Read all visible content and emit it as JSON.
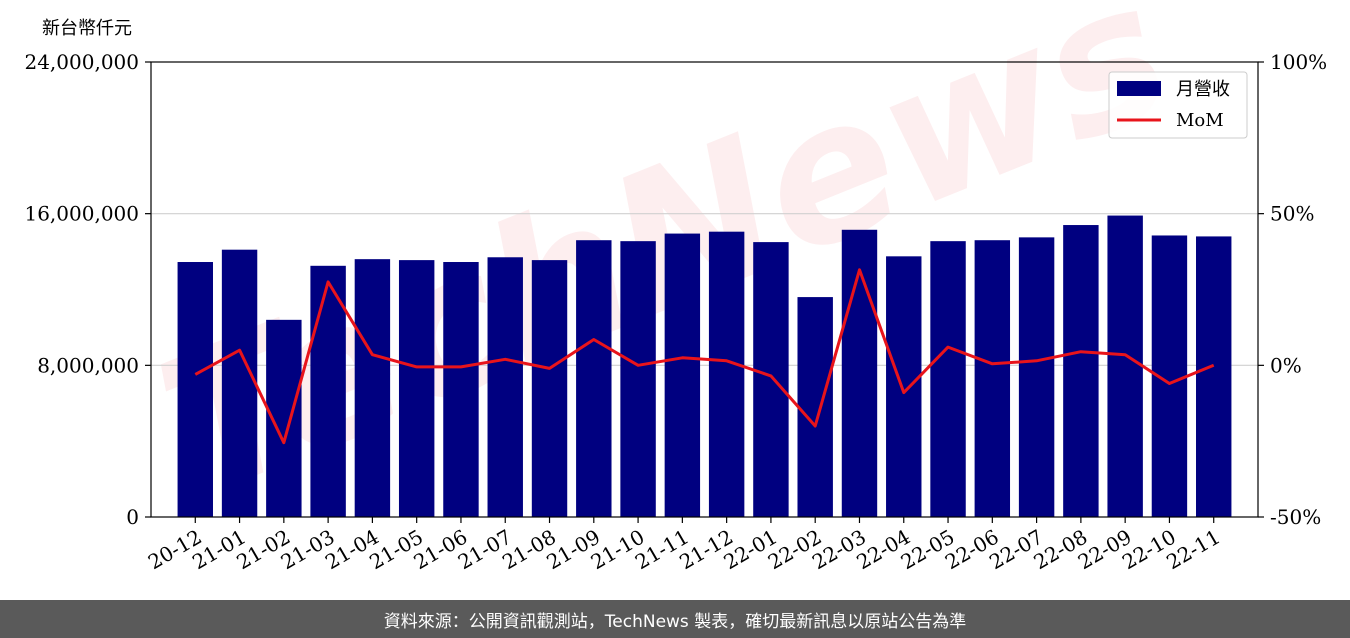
{
  "chart_data": {
    "type": "bar",
    "unit_label": "新台幣仟元",
    "categories": [
      "20-12",
      "21-01",
      "21-02",
      "21-03",
      "21-04",
      "21-05",
      "21-06",
      "21-07",
      "21-08",
      "21-09",
      "21-10",
      "21-11",
      "21-12",
      "22-01",
      "22-02",
      "22-03",
      "22-04",
      "22-05",
      "22-06",
      "22-07",
      "22-08",
      "22-09",
      "22-10",
      "22-11"
    ],
    "series": [
      {
        "name": "月營收",
        "kind": "bar",
        "axis": "left",
        "color": "#000080",
        "values": [
          13450000,
          14100000,
          10400000,
          13250000,
          13600000,
          13550000,
          13450000,
          13700000,
          13550000,
          14600000,
          14550000,
          14950000,
          15050000,
          14500000,
          11600000,
          15150000,
          13750000,
          14550000,
          14600000,
          14750000,
          15400000,
          15900000,
          14850000,
          14800000
        ]
      },
      {
        "name": "MoM",
        "kind": "line",
        "axis": "right",
        "color": "#e8141b",
        "values": [
          -3,
          5,
          -25.5,
          27.5,
          3.5,
          -0.5,
          -0.5,
          2,
          -1,
          8.5,
          0,
          2.5,
          1.5,
          -3.5,
          -20,
          31.5,
          -9,
          6,
          0.5,
          1.5,
          4.5,
          3.5,
          -6,
          0
        ]
      }
    ],
    "y_left": {
      "min": 0,
      "max": 24000000,
      "ticks": [
        0,
        8000000,
        16000000,
        24000000
      ],
      "tick_labels": [
        "0",
        "8,000,000",
        "16,000,000",
        "24,000,000"
      ]
    },
    "y_right": {
      "min": -50,
      "max": 100,
      "ticks": [
        -50,
        0,
        50,
        100
      ],
      "tick_labels": [
        "-50%",
        "0%",
        "50%",
        "100%"
      ]
    },
    "grid": "horizontal",
    "legend_position": "top-right",
    "watermark": "TechNews"
  },
  "footer": {
    "text": "資料來源：公開資訊觀測站，TechNews 製表，確切最新訊息以原站公告為準"
  }
}
